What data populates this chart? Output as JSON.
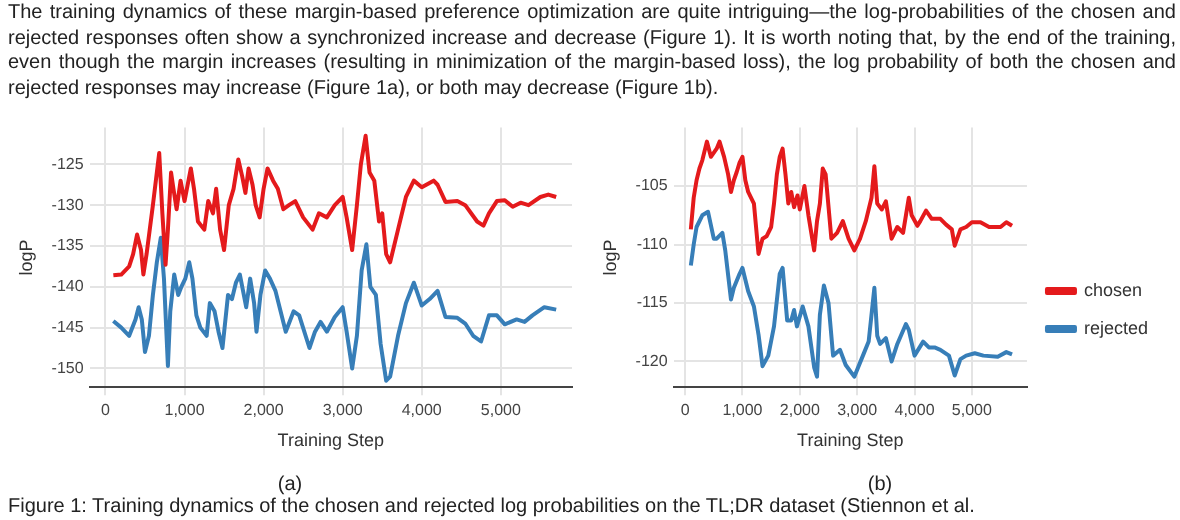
{
  "chart_data": [
    {
      "type": "line",
      "title": "(a)",
      "xlabel": "Training Step",
      "ylabel": "logP",
      "grid": true,
      "legend": false,
      "xlim": [
        -200,
        5900
      ],
      "ylim": [
        -152.3,
        -120.5
      ],
      "xticks": [
        0,
        {
          "value": 1000,
          "label": "1,000"
        },
        {
          "value": 2000,
          "label": "2,000"
        },
        {
          "value": 3000,
          "label": "3,000"
        },
        {
          "value": 4000,
          "label": "4,000"
        },
        {
          "value": 5000,
          "label": "5,000"
        }
      ],
      "yticks": [
        -150,
        -145,
        -140,
        -135,
        -130,
        -125
      ],
      "annotations": [
        "The training dynamics of these margin-based preference optimization are quite intriguing—the log-probabilities of the chosen and rejected responses often show a synchronized increase and decrease (Figure 1). It is worth noting that, by the end of the training, even though the margin increases (resulting in minimization of the margin-based loss), the log probability of both the chosen and rejected responses may increase (Figure 1a), or both may decrease (Figure 1b)."
      ],
      "series": [
        {
          "color": "#e41a1c",
          "x": [
            100,
            200,
            300,
            350,
            400,
            450,
            480,
            520,
            560,
            600,
            650,
            680,
            720,
            760,
            790,
            830,
            860,
            900,
            950,
            1000,
            1050,
            1080,
            1120,
            1170,
            1250,
            1300,
            1360,
            1400,
            1450,
            1500,
            1560,
            1620,
            1680,
            1730,
            1770,
            1810,
            1860,
            1900,
            1950,
            2000,
            2050,
            2120,
            2180,
            2250,
            2320,
            2400,
            2500,
            2620,
            2700,
            2800,
            2900,
            3000,
            3050,
            3120,
            3180,
            3230,
            3290,
            3340,
            3400,
            3460,
            3500,
            3550,
            3600,
            3700,
            3800,
            3900,
            4000,
            4150,
            4200,
            4300,
            4450,
            4550,
            4700,
            4780,
            4850,
            4950,
            5050,
            5150,
            5250,
            5350,
            5500,
            5600,
            5700
          ],
          "values": [
            -138.6,
            -138.5,
            -137.5,
            -136,
            -133.6,
            -135.5,
            -138.5,
            -136,
            -133,
            -130,
            -126,
            -123.6,
            -131,
            -137.3,
            -133,
            -126,
            -128,
            -130.5,
            -127,
            -129.5,
            -127,
            -125.5,
            -128,
            -132,
            -133,
            -129.5,
            -131,
            -128,
            -133,
            -135.5,
            -130,
            -128,
            -124.4,
            -126.5,
            -128.5,
            -125.5,
            -127.5,
            -130,
            -131.5,
            -128,
            -125.5,
            -127,
            -128,
            -130.5,
            -130,
            -129.5,
            -131.5,
            -133,
            -131,
            -131.5,
            -130,
            -129,
            -131.5,
            -135.5,
            -130,
            -125,
            -121.5,
            -126,
            -127,
            -132,
            -131,
            -136,
            -137,
            -133,
            -129,
            -127,
            -127.8,
            -127,
            -127.5,
            -129.6,
            -129.5,
            -130,
            -132,
            -132.5,
            -131,
            -129.5,
            -129.4,
            -130.2,
            -129.7,
            -130,
            -129,
            -128.7,
            -129
          ]
        },
        {
          "color": "#377eb8",
          "x": [
            100,
            200,
            300,
            380,
            420,
            460,
            500,
            550,
            600,
            650,
            700,
            740,
            790,
            820,
            870,
            920,
            960,
            1010,
            1060,
            1100,
            1150,
            1200,
            1280,
            1320,
            1380,
            1430,
            1480,
            1550,
            1600,
            1650,
            1700,
            1740,
            1780,
            1830,
            1880,
            1910,
            1960,
            2020,
            2080,
            2150,
            2280,
            2380,
            2450,
            2580,
            2650,
            2720,
            2800,
            2900,
            3000,
            3050,
            3120,
            3180,
            3240,
            3300,
            3350,
            3420,
            3480,
            3550,
            3600,
            3700,
            3800,
            3900,
            4000,
            4100,
            4200,
            4300,
            4450,
            4550,
            4650,
            4750,
            4850,
            4950,
            5050,
            5200,
            5300,
            5400,
            5550,
            5700
          ],
          "values": [
            -144.2,
            -145,
            -146,
            -144,
            -142.5,
            -144,
            -148,
            -146,
            -141,
            -137,
            -134,
            -139,
            -149.7,
            -143,
            -138.5,
            -141,
            -140,
            -139,
            -137,
            -139,
            -143.5,
            -145,
            -146,
            -142,
            -143,
            -145.5,
            -147.5,
            -141,
            -141.5,
            -139.5,
            -138.5,
            -140.5,
            -142.5,
            -139,
            -142,
            -145.5,
            -141,
            -138,
            -139,
            -140.5,
            -145.5,
            -143,
            -143.5,
            -147.5,
            -145.5,
            -144.3,
            -145.5,
            -143.7,
            -142.5,
            -145.5,
            -150,
            -146,
            -138,
            -134.8,
            -140,
            -141,
            -147,
            -151.5,
            -151,
            -146,
            -142,
            -139.5,
            -142.3,
            -141.5,
            -140.5,
            -143.7,
            -143.8,
            -144.5,
            -146,
            -146.7,
            -143.5,
            -143.5,
            -144.6,
            -144,
            -144.3,
            -143.5,
            -142.5,
            -142.8
          ]
        }
      ]
    },
    {
      "type": "line",
      "title": "(b)",
      "xlabel": "Training Step",
      "ylabel": "logP",
      "grid": true,
      "legend": "right",
      "xlim": [
        -200,
        5960
      ],
      "ylim": [
        -122.2,
        -100
      ],
      "xticks": [
        0,
        {
          "value": 1000,
          "label": "1,000"
        },
        {
          "value": 2000,
          "label": "2,000"
        },
        {
          "value": 3000,
          "label": "3,000"
        },
        {
          "value": 4000,
          "label": "4,000"
        },
        {
          "value": 5000,
          "label": "5,000"
        }
      ],
      "yticks": [
        -120,
        -115,
        -110,
        -105
      ],
      "annotations": [
        "Figure 1: Training dynamics of the chosen and rejected log probabilities on the TL;DR dataset (Stiennon et al."
      ],
      "series": [
        {
          "name": "chosen",
          "color": "#e41a1c",
          "x": [
            100,
            150,
            200,
            250,
            300,
            380,
            450,
            550,
            600,
            680,
            750,
            800,
            850,
            900,
            950,
            1000,
            1050,
            1100,
            1200,
            1280,
            1350,
            1420,
            1500,
            1550,
            1600,
            1650,
            1700,
            1750,
            1800,
            1850,
            1900,
            1960,
            2000,
            2080,
            2150,
            2250,
            2300,
            2350,
            2400,
            2450,
            2550,
            2650,
            2750,
            2850,
            2950,
            3050,
            3150,
            3250,
            3300,
            3350,
            3430,
            3500,
            3600,
            3700,
            3800,
            3850,
            3900,
            3950,
            4050,
            4100,
            4200,
            4300,
            4450,
            4550,
            4650,
            4700,
            4800,
            4900,
            5000,
            5150,
            5300,
            5500,
            5600,
            5700
          ],
          "values": [
            -108.7,
            -106,
            -104.5,
            -103.5,
            -102.8,
            -101.2,
            -102.5,
            -101.8,
            -101.2,
            -102.5,
            -104,
            -105.5,
            -104.5,
            -103.8,
            -103,
            -102.5,
            -104.5,
            -105.5,
            -106.5,
            -110.8,
            -109.5,
            -109.3,
            -108.5,
            -106.5,
            -104,
            -102.5,
            -101.8,
            -104,
            -106.5,
            -105.5,
            -106.8,
            -105.8,
            -107,
            -105,
            -107.5,
            -110.5,
            -108,
            -106.5,
            -103.5,
            -104,
            -109.5,
            -109,
            -108,
            -109.5,
            -110.5,
            -109.5,
            -108,
            -106,
            -103.3,
            -106.5,
            -107,
            -106.3,
            -109.5,
            -108.5,
            -109,
            -107.5,
            -106,
            -107.5,
            -108.4,
            -108,
            -107.1,
            -107.8,
            -107.8,
            -108.3,
            -108.7,
            -110.1,
            -108.7,
            -108.5,
            -108.1,
            -108.1,
            -108.5,
            -108.5,
            -108.1,
            -108.4
          ]
        },
        {
          "name": "rejected",
          "color": "#377eb8",
          "x": [
            100,
            150,
            200,
            300,
            400,
            500,
            550,
            650,
            700,
            800,
            850,
            950,
            1000,
            1100,
            1200,
            1280,
            1350,
            1450,
            1550,
            1650,
            1700,
            1780,
            1850,
            1900,
            1950,
            2050,
            2150,
            2250,
            2300,
            2350,
            2420,
            2500,
            2580,
            2700,
            2800,
            2950,
            3100,
            3200,
            3300,
            3350,
            3400,
            3500,
            3600,
            3700,
            3850,
            3900,
            4000,
            4150,
            4250,
            4350,
            4450,
            4600,
            4700,
            4800,
            4900,
            5050,
            5200,
            5450,
            5600,
            5700
          ],
          "values": [
            -111.8,
            -110,
            -108.5,
            -107.5,
            -107.2,
            -109.5,
            -109.5,
            -109,
            -110.5,
            -114.7,
            -113.7,
            -112.5,
            -112,
            -114,
            -115.3,
            -117.7,
            -120.4,
            -119.5,
            -117,
            -112.5,
            -112,
            -116.5,
            -116.5,
            -115.6,
            -117,
            -115.3,
            -117,
            -120.5,
            -121.3,
            -116,
            -113.5,
            -115,
            -119.5,
            -119,
            -120.3,
            -121.3,
            -119.5,
            -118.3,
            -113.7,
            -117.8,
            -118.5,
            -118,
            -120,
            -118.5,
            -116.8,
            -117.3,
            -119.5,
            -118.3,
            -118.8,
            -118.8,
            -119,
            -119.5,
            -121.2,
            -119.8,
            -119.5,
            -119.3,
            -119.5,
            -119.6,
            -119.2,
            -119.4
          ]
        }
      ]
    }
  ]
}
